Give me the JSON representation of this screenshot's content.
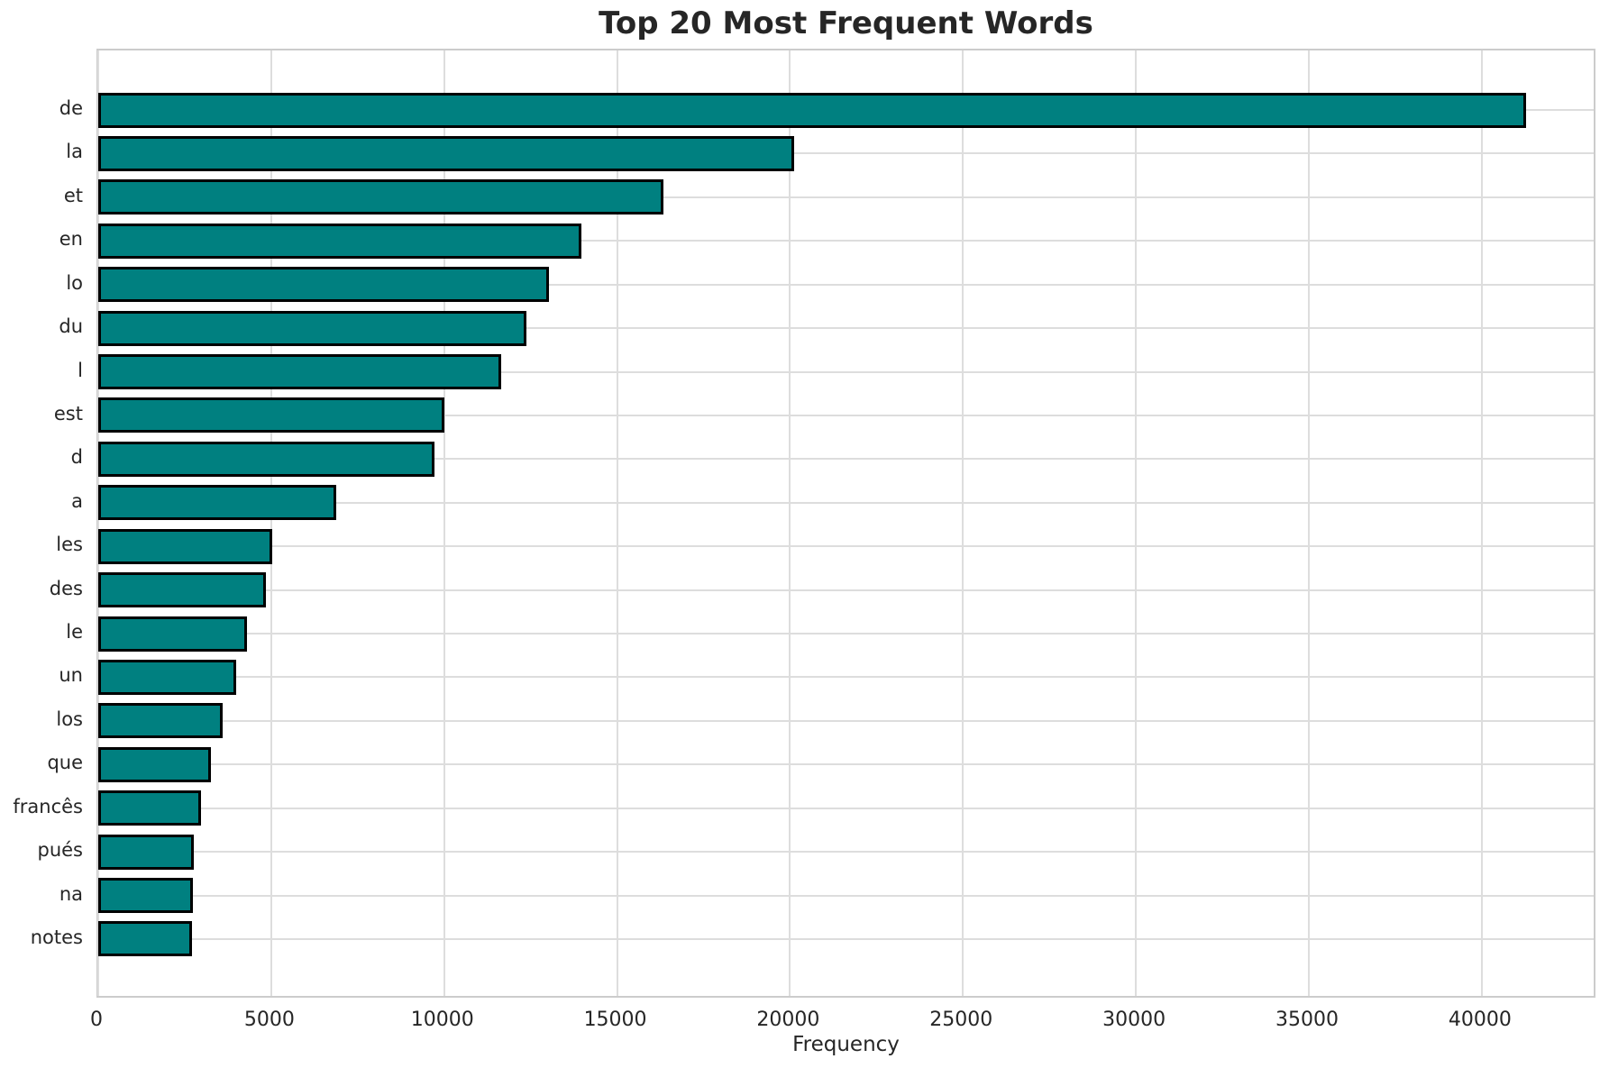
{
  "title": "Top 20 Most Frequent Words",
  "chart_data": {
    "type": "bar",
    "orientation": "horizontal",
    "title": "Top 20 Most Frequent Words",
    "xlabel": "Frequency",
    "ylabel": "",
    "categories": [
      "de",
      "la",
      "et",
      "en",
      "lo",
      "du",
      "l",
      "est",
      "d",
      "a",
      "les",
      "des",
      "le",
      "un",
      "los",
      "que",
      "francês",
      "pués",
      "na",
      "notes"
    ],
    "values": [
      41270,
      20110,
      16330,
      13980,
      13040,
      12390,
      11640,
      10010,
      9710,
      6870,
      5040,
      4850,
      4300,
      3990,
      3600,
      3260,
      2970,
      2760,
      2740,
      2710
    ],
    "xlim": [
      0,
      43340
    ],
    "xticks": [
      0,
      5000,
      10000,
      15000,
      20000,
      25000,
      30000,
      35000,
      40000
    ],
    "grid": true,
    "legend": "none",
    "bar_color": "#008080",
    "bar_edge_color": "#000000",
    "grid_color": "#dddddd",
    "spine_color": "#cccccc",
    "text_color": "#262626",
    "background_color": "#ffffff"
  }
}
